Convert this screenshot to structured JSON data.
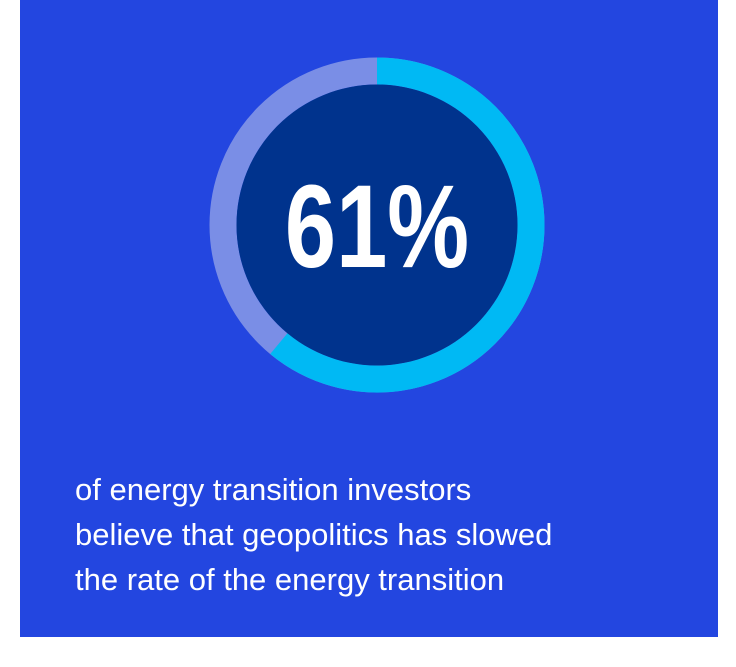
{
  "chart_data": {
    "type": "donut",
    "values": [
      61
    ],
    "value_labels": [
      "61%"
    ],
    "valuelim": [
      0,
      100
    ],
    "color": "#00b9f4",
    "track_color": "#7a8ee6",
    "center_color": "#00338d",
    "background": "#2346e0",
    "caption": [
      "of energy transition investors",
      "believe that geopolitics has slowed",
      "the rate of the energy transition"
    ]
  }
}
